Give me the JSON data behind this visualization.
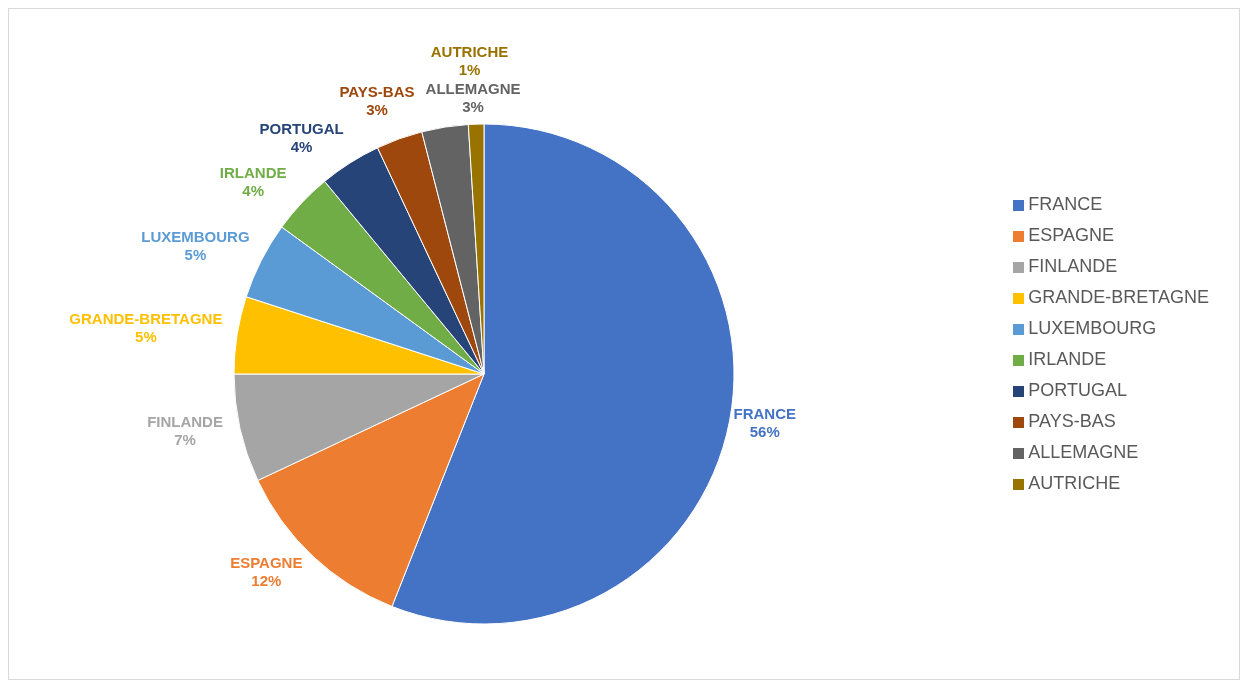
{
  "chart_data": {
    "type": "pie",
    "categories": [
      "FRANCE",
      "ESPAGNE",
      "FINLANDE",
      "GRANDE-BRETAGNE",
      "LUXEMBOURG",
      "IRLANDE",
      "PORTUGAL",
      "PAYS-BAS",
      "ALLEMAGNE",
      "AUTRICHE"
    ],
    "values": [
      56,
      12,
      7,
      5,
      5,
      4,
      4,
      3,
      3,
      1
    ],
    "value_labels": [
      "56%",
      "12%",
      "7%",
      "5%",
      "5%",
      "4%",
      "4%",
      "3%",
      "3%",
      "1%"
    ],
    "colors": [
      "#4472c4",
      "#ed7d31",
      "#a5a5a5",
      "#ffc000",
      "#5b9bd5",
      "#70ad47",
      "#264478",
      "#9e480e",
      "#636363",
      "#997300"
    ],
    "legend": "right"
  }
}
